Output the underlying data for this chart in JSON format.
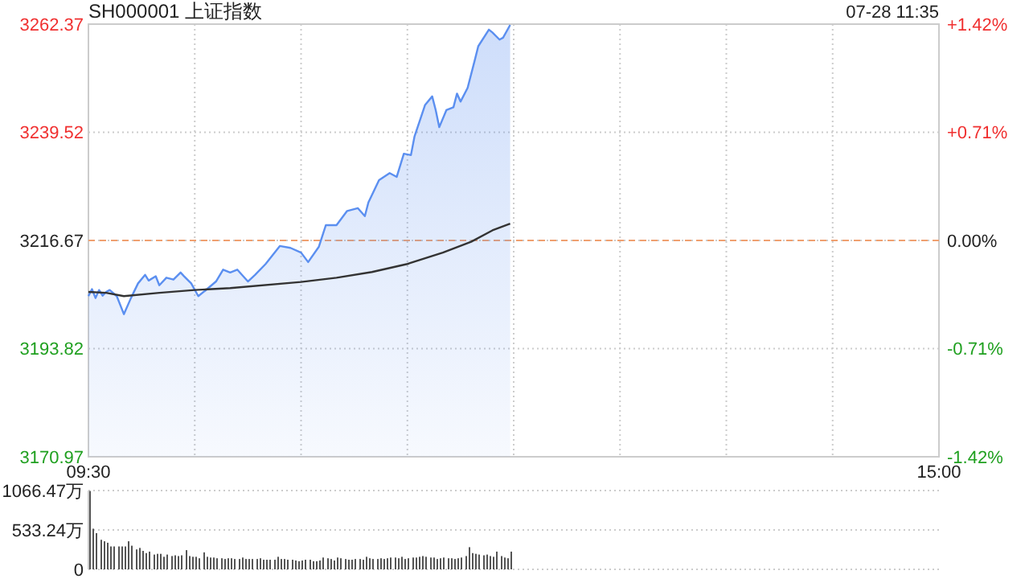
{
  "chart_data": [
    {
      "type": "area",
      "title": "SH000001 上证指数",
      "annotations": [
        "07-28 11:35"
      ],
      "categories": [
        "09:30",
        null,
        null,
        null,
        null,
        null,
        null,
        null,
        null,
        null,
        null,
        null,
        null,
        null,
        null,
        null,
        null,
        null,
        null,
        null,
        null,
        null,
        null,
        null,
        null,
        null,
        null,
        null,
        null,
        null,
        null,
        null,
        null,
        null,
        null,
        null,
        null,
        null,
        null,
        null,
        null,
        null,
        null,
        null,
        null,
        null,
        null,
        null,
        null,
        null,
        null,
        null,
        null,
        null,
        null,
        null,
        null,
        null,
        null,
        null,
        null,
        null,
        null,
        null,
        null,
        null,
        null,
        null,
        null,
        null,
        null,
        null,
        null,
        null,
        null,
        null,
        null,
        null,
        null,
        null,
        null,
        null,
        null,
        null,
        null,
        null,
        null,
        null,
        null,
        null,
        null,
        null,
        null,
        null,
        null,
        null,
        null,
        null,
        null,
        null,
        null,
        null,
        null,
        null,
        null,
        null,
        null,
        null,
        null,
        null,
        null,
        null,
        null,
        null,
        null,
        null,
        null,
        null,
        null,
        null,
        null,
        null,
        null,
        null,
        null,
        null,
        null,
        null,
        null,
        null,
        null,
        null,
        null,
        null,
        null,
        null,
        null,
        null,
        null,
        null,
        null,
        null,
        null,
        null,
        null,
        null,
        null,
        null,
        null,
        null,
        null,
        null,
        null,
        null,
        null,
        null,
        null,
        null,
        null,
        null,
        null,
        null,
        null,
        null,
        null,
        null,
        null,
        null,
        null,
        null,
        null,
        null,
        null,
        null,
        null,
        null,
        null,
        null,
        null,
        null,
        null,
        null,
        null,
        null,
        null,
        null,
        null,
        null,
        null,
        null,
        null,
        null,
        null,
        null,
        null,
        null,
        null,
        null,
        null,
        null,
        null,
        null,
        null,
        null,
        null,
        null,
        null,
        null,
        null,
        null,
        null,
        null,
        null,
        null,
        null,
        null,
        null,
        null,
        null,
        null,
        null,
        null,
        null,
        null,
        null,
        null,
        null,
        null,
        null,
        null,
        null,
        null,
        null,
        null,
        null,
        null,
        null,
        null,
        null,
        null,
        "15:00"
      ],
      "ylim": [
        3170.97,
        3262.37
      ],
      "yticks": [
        3170.97,
        3193.82,
        3216.67,
        3239.52,
        3262.37
      ],
      "y2lim": [
        -1.42,
        1.42
      ],
      "y2ticks": [
        {
          "value": -1.42,
          "label": "-1.42%"
        },
        {
          "value": -0.71,
          "label": "-0.71%"
        },
        {
          "value": 0,
          "label": "0.00%"
        },
        {
          "value": 0.71,
          "label": "+0.71%"
        },
        {
          "value": 1.42,
          "label": "+1.42%"
        }
      ],
      "grid": true,
      "ref_lines": [
        {
          "axis": "y",
          "value": 3216.67,
          "color": "#f0a070",
          "line_style": "dashed"
        }
      ],
      "series": [
        {
          "type": "area",
          "color": "#5b8ff0",
          "values": [
            3204.9,
            3206.4,
            3204.5,
            3206.2,
            3205,
            3205.8,
            3206.2,
            null,
            3204.9,
            null,
            3201.1,
            null,
            3204.5,
            null,
            3207.6,
            null,
            3209.4,
            3208.2,
            null,
            3209.1,
            3207.2,
            null,
            3208.8,
            null,
            3208.4,
            null,
            3209.9,
            3209.1,
            null,
            3207.6,
            null,
            3204.9,
            null,
            3206.1,
            null,
            null,
            3208,
            null,
            3210.5,
            null,
            3209.9,
            null,
            3210.5,
            null,
            null,
            3208,
            null,
            3209.4,
            null,
            null,
            3211.7,
            null,
            null,
            null,
            3215.5,
            null,
            null,
            3215.1,
            null,
            null,
            3214.1,
            null,
            3212.1,
            null,
            null,
            3215.3,
            null,
            3219.9,
            null,
            null,
            3219.9,
            null,
            null,
            3222.9,
            null,
            null,
            3223.5,
            null,
            3221.8,
            3224.7,
            null,
            null,
            3229.4,
            null,
            null,
            3230.9,
            null,
            3230.1,
            null,
            3235,
            null,
            3234.7,
            3238.6,
            null,
            null,
            3245.3,
            null,
            3247.1,
            3244.2,
            3240.6,
            null,
            3244.2,
            null,
            3244.8,
            3247.7,
            3246,
            null,
            3248.9,
            null,
            3254.7,
            3257.7,
            null,
            null,
            3261.2,
            3260.6,
            null,
            3259.1,
            3259.5,
            null,
            3262.2,
            null,
            null,
            null,
            null,
            null,
            null,
            null,
            null,
            null,
            null,
            null,
            null,
            null,
            null,
            null,
            null,
            null,
            null,
            null,
            null,
            null,
            null,
            null,
            null,
            null,
            null,
            null,
            null,
            null,
            null,
            null,
            null,
            null,
            null,
            null,
            null,
            null,
            null,
            null,
            null,
            null,
            null,
            null,
            null,
            null,
            null,
            null,
            null,
            null,
            null,
            null,
            null,
            null,
            null,
            null,
            null,
            null,
            null,
            null,
            null,
            null,
            null,
            null,
            null,
            null,
            null,
            null,
            null,
            null,
            null,
            null,
            null,
            null,
            null,
            null,
            null,
            null,
            null,
            null,
            null,
            null,
            null,
            null,
            null,
            null,
            null,
            null,
            null,
            null,
            null,
            null,
            null,
            null,
            null,
            null,
            null,
            null,
            null,
            null,
            null,
            null,
            null,
            null,
            null,
            null,
            null,
            null,
            null,
            null,
            null,
            null,
            null,
            null,
            null,
            null,
            null,
            null,
            null,
            null,
            null,
            null
          ]
        },
        {
          "type": "line",
          "color": "#333333",
          "values": [
            3205.8,
            null,
            null,
            null,
            null,
            3205.6,
            null,
            null,
            null,
            null,
            3204.9,
            null,
            null,
            null,
            null,
            null,
            null,
            null,
            null,
            null,
            3205.6,
            null,
            null,
            null,
            null,
            null,
            null,
            null,
            null,
            null,
            3206.2,
            null,
            null,
            null,
            null,
            null,
            null,
            null,
            null,
            null,
            3206.6,
            null,
            null,
            null,
            null,
            null,
            null,
            null,
            null,
            null,
            null,
            null,
            null,
            null,
            null,
            null,
            null,
            null,
            null,
            null,
            3207.9,
            null,
            null,
            null,
            null,
            null,
            null,
            null,
            null,
            null,
            3208.8,
            null,
            null,
            null,
            null,
            null,
            null,
            null,
            null,
            null,
            3210,
            null,
            null,
            null,
            null,
            null,
            null,
            null,
            null,
            null,
            3211.7,
            null,
            null,
            null,
            null,
            null,
            null,
            null,
            null,
            null,
            3214.1,
            null,
            null,
            null,
            null,
            null,
            null,
            null,
            3216.4,
            null,
            null,
            null,
            null,
            null,
            3218.8,
            null,
            null,
            null,
            null,
            3220.2,
            null,
            null,
            null,
            null,
            null,
            null,
            null,
            null,
            null,
            null,
            null,
            null,
            null,
            null,
            null,
            null,
            null,
            null,
            null,
            null,
            null,
            null,
            null,
            null,
            null,
            null,
            null,
            null,
            null,
            null,
            null,
            null,
            null,
            null,
            null,
            null,
            null,
            null,
            null,
            null,
            null,
            null,
            null,
            null,
            null,
            null,
            null,
            null,
            null,
            null,
            null,
            null,
            null,
            null,
            null,
            null,
            null,
            null,
            null,
            null,
            null,
            null,
            null,
            null,
            null,
            null,
            null,
            null,
            null,
            null,
            null,
            null,
            null,
            null,
            null,
            null,
            null,
            null,
            null,
            null,
            null,
            null,
            null,
            null,
            null,
            null,
            null,
            null,
            null,
            null,
            null,
            null,
            null,
            null,
            null,
            null,
            null,
            null,
            null,
            null,
            null,
            null,
            null,
            null,
            null,
            null,
            null,
            null,
            null,
            null,
            null,
            null,
            null,
            null,
            null,
            null,
            null,
            null,
            null,
            null,
            null
          ]
        }
      ]
    },
    {
      "type": "bar",
      "color": "#555555",
      "tick_labels": "y",
      "ylim": [
        0,
        1066.47
      ],
      "yticks": [
        {
          "value": 0,
          "label": "0"
        },
        {
          "value": 533.24,
          "label": "533.24万"
        },
        {
          "value": 1066.47,
          "label": "1066.47万"
        }
      ],
      "grid": "y",
      "categories": [
        null,
        null,
        null,
        null,
        null,
        null,
        null,
        null,
        null,
        null,
        null,
        null,
        null,
        null,
        null,
        null,
        null,
        null,
        null,
        null,
        null,
        null,
        null,
        null,
        null,
        null,
        null,
        null,
        null,
        null,
        null,
        null,
        null,
        null,
        null,
        null,
        null,
        null,
        null,
        null,
        null,
        null,
        null,
        null,
        null,
        null,
        null,
        null,
        null,
        null,
        null,
        null,
        null,
        null,
        null,
        null,
        null,
        null,
        null,
        null,
        null,
        null,
        null,
        null,
        null,
        null,
        null,
        null,
        null,
        null,
        null,
        null,
        null,
        null,
        null,
        null,
        null,
        null,
        null,
        null,
        null,
        null,
        null,
        null,
        null,
        null,
        null,
        null,
        null,
        null,
        null,
        null,
        null,
        null,
        null,
        null,
        null,
        null,
        null,
        null,
        null,
        null,
        null,
        null,
        null,
        null,
        null,
        null,
        null,
        null,
        null,
        null,
        null,
        null,
        null,
        null,
        null,
        null,
        null,
        null,
        null,
        null,
        null,
        null,
        null,
        null,
        null,
        null,
        null,
        null,
        null,
        null,
        null,
        null,
        null,
        null,
        null,
        null,
        null,
        null,
        null,
        null,
        null,
        null,
        null,
        null,
        null,
        null,
        null,
        null,
        null,
        null,
        null,
        null,
        null,
        null,
        null,
        null,
        null,
        null,
        null,
        null,
        null,
        null,
        null,
        null,
        null,
        null,
        null,
        null,
        null,
        null,
        null,
        null,
        null,
        null,
        null,
        null,
        null,
        null,
        null,
        null,
        null,
        null,
        null,
        null,
        null,
        null,
        null,
        null,
        null,
        null,
        null,
        null,
        null,
        null,
        null,
        null,
        null,
        null,
        null,
        null,
        null,
        null,
        null,
        null,
        null,
        null,
        null,
        null,
        null,
        null,
        null,
        null,
        null,
        null,
        null,
        null,
        null,
        null,
        null,
        null,
        null,
        null,
        null,
        null,
        null,
        null,
        null,
        null,
        null,
        null,
        null,
        null,
        null,
        null,
        null,
        null,
        null,
        null,
        null
      ],
      "values": [
        1060,
        550,
        490,
        400,
        380,
        360,
        310,
        310,
        310,
        310,
        310,
        380,
        320,
        270,
        290,
        250,
        220,
        240,
        200,
        210,
        210,
        170,
        200,
        180,
        190,
        180,
        190,
        260,
        180,
        170,
        170,
        150,
        230,
        170,
        160,
        160,
        150,
        150,
        140,
        150,
        150,
        140,
        140,
        160,
        140,
        140,
        140,
        140,
        150,
        130,
        130,
        130,
        130,
        170,
        140,
        140,
        130,
        130,
        120,
        110,
        120,
        130,
        130,
        110,
        110,
        120,
        160,
        150,
        140,
        120,
        160,
        150,
        140,
        130,
        130,
        140,
        140,
        130,
        170,
        150,
        140,
        140,
        150,
        140,
        150,
        160,
        160,
        150,
        170,
        140,
        150,
        160,
        160,
        170,
        180,
        170,
        160,
        160,
        140,
        150,
        160,
        150,
        150,
        140,
        150,
        160,
        180,
        300,
        220,
        210,
        200,
        190,
        200,
        180,
        170,
        240,
        180,
        160,
        150,
        240,
        null,
        null,
        null,
        null,
        null,
        null,
        null,
        null,
        null,
        null,
        null,
        null,
        null,
        null,
        null,
        null,
        null,
        null,
        null,
        null,
        null,
        null,
        null,
        null,
        null,
        null,
        null,
        null,
        null,
        null,
        null,
        null,
        null,
        null,
        null,
        null,
        null,
        null,
        null,
        null,
        null,
        null,
        null,
        null,
        null,
        null,
        null,
        null,
        null,
        null,
        null,
        null,
        null,
        null,
        null,
        null,
        null,
        null,
        null,
        null,
        null,
        null,
        null,
        null,
        null,
        null,
        null,
        null,
        null,
        null,
        null,
        null,
        null,
        null,
        null,
        null,
        null,
        null,
        null,
        null,
        null,
        null,
        null,
        null,
        null,
        null,
        null,
        null,
        null,
        null,
        null,
        null,
        null,
        null,
        null,
        null,
        null,
        null,
        null,
        null,
        null,
        null,
        null,
        null,
        null,
        null,
        null,
        null,
        null,
        null,
        null,
        null,
        null,
        null,
        null,
        null,
        null,
        null,
        null,
        null,
        null
      ]
    }
  ]
}
